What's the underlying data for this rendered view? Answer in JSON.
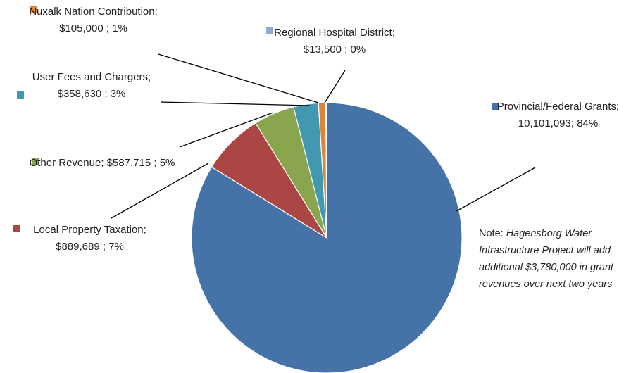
{
  "chart_data": {
    "type": "pie",
    "categories": [
      "Provincial/Federal Grants",
      "Local Property Taxation",
      "Other Revenue",
      "User Fees and Chargers",
      "Nuxalk Nation Contribution",
      "Regional Hospital District"
    ],
    "values": [
      10101093,
      889689,
      587715,
      358630,
      105000,
      13500
    ],
    "value_labels": [
      "; 10,101,093; 84%",
      "; $889,689 ; 7%",
      "; $587,715 ; 5%",
      "; $358,630 ; 3%",
      "; $105,000 ; 1%",
      "; $13,500 ; 0%"
    ],
    "colors": [
      "#4572a7",
      "#aa4643",
      "#89a54e",
      "#4198af",
      "#db843d",
      "#93a9cf"
    ],
    "annotations": [
      {
        "prefix": "Note:",
        "text": " Hagensborg Water Infrastructure Project will add additional $3,780,000 in grant revenues over next two years"
      }
    ]
  }
}
